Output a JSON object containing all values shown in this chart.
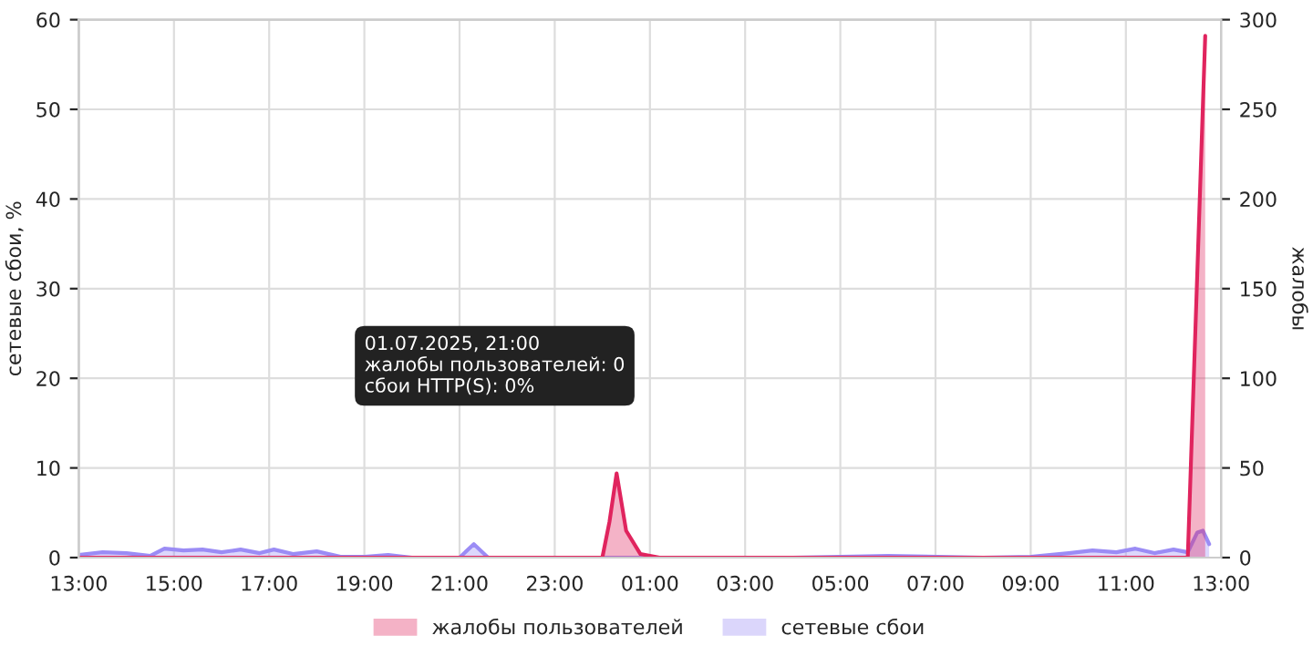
{
  "chart_data": {
    "type": "area",
    "ylabel": "сетевые сбои, %",
    "y2label": "жалобы",
    "xlim": [
      "2025-07-01T13:00",
      "2025-07-02T13:00"
    ],
    "xticks": [
      {
        "value": "2025-07-01T13:00",
        "label": "13:00"
      },
      {
        "value": "2025-07-01T15:00",
        "label": "15:00"
      },
      {
        "value": "2025-07-01T17:00",
        "label": "17:00"
      },
      {
        "value": "2025-07-01T19:00",
        "label": "19:00"
      },
      {
        "value": "2025-07-01T21:00",
        "label": "21:00"
      },
      {
        "value": "2025-07-01T23:00",
        "label": "23:00"
      },
      {
        "value": "2025-07-02T01:00",
        "label": "01:00"
      },
      {
        "value": "2025-07-02T03:00",
        "label": "03:00"
      },
      {
        "value": "2025-07-02T05:00",
        "label": "05:00"
      },
      {
        "value": "2025-07-02T07:00",
        "label": "07:00"
      },
      {
        "value": "2025-07-02T09:00",
        "label": "09:00"
      },
      {
        "value": "2025-07-02T11:00",
        "label": "11:00"
      },
      {
        "value": "2025-07-02T13:00",
        "label": "13:00"
      }
    ],
    "ylim": [
      0,
      60
    ],
    "yticks": [
      0,
      10,
      20,
      30,
      40,
      50,
      60
    ],
    "y2lim": [
      0,
      300
    ],
    "y2ticks": [
      0,
      50,
      100,
      150,
      200,
      250,
      300
    ],
    "grid": true,
    "legend": "bottom",
    "series": [
      {
        "name": "жалобы пользователей",
        "color": "#e0245e",
        "axis": "y2",
        "x": [
          "2025-07-01T13:00",
          "2025-07-02T00:00",
          "2025-07-02T00:09",
          "2025-07-02T00:18",
          "2025-07-02T00:30",
          "2025-07-02T00:48",
          "2025-07-02T01:12",
          "2025-07-02T12:18",
          "2025-07-02T12:40"
        ],
        "values": [
          0,
          0,
          20,
          47,
          15,
          2,
          0,
          0,
          291
        ]
      },
      {
        "name": "сетевые сбои",
        "color": "#9b8cf5",
        "x": [
          "2025-07-01T13:00",
          "2025-07-01T13:30",
          "2025-07-01T14:00",
          "2025-07-01T14:30",
          "2025-07-01T14:48",
          "2025-07-01T15:12",
          "2025-07-01T15:36",
          "2025-07-01T16:00",
          "2025-07-01T16:24",
          "2025-07-01T16:48",
          "2025-07-01T17:06",
          "2025-07-01T17:30",
          "2025-07-01T18:00",
          "2025-07-01T18:30",
          "2025-07-01T19:00",
          "2025-07-01T19:30",
          "2025-07-01T20:00",
          "2025-07-01T21:00",
          "2025-07-01T21:18",
          "2025-07-01T21:36",
          "2025-07-01T22:00",
          "2025-07-02T04:00",
          "2025-07-02T06:00",
          "2025-07-02T08:00",
          "2025-07-02T09:00",
          "2025-07-02T09:48",
          "2025-07-02T10:18",
          "2025-07-02T10:48",
          "2025-07-02T11:12",
          "2025-07-02T11:36",
          "2025-07-02T12:00",
          "2025-07-02T12:18",
          "2025-07-02T12:30",
          "2025-07-02T12:37",
          "2025-07-02T12:45"
        ],
        "values": [
          0.3,
          0.6,
          0.5,
          0.2,
          1.0,
          0.8,
          0.9,
          0.6,
          0.9,
          0.5,
          0.9,
          0.4,
          0.7,
          0.1,
          0.1,
          0.3,
          0,
          0,
          1.5,
          0,
          0,
          0,
          0.2,
          0,
          0.1,
          0.5,
          0.8,
          0.6,
          1.0,
          0.5,
          0.9,
          0.6,
          2.8,
          3.0,
          1.5
        ]
      }
    ],
    "annotations": [
      "01.07.2025, 21:00\nжалобы пользователей: 0\nсбои HTTP(S): 0%"
    ]
  }
}
